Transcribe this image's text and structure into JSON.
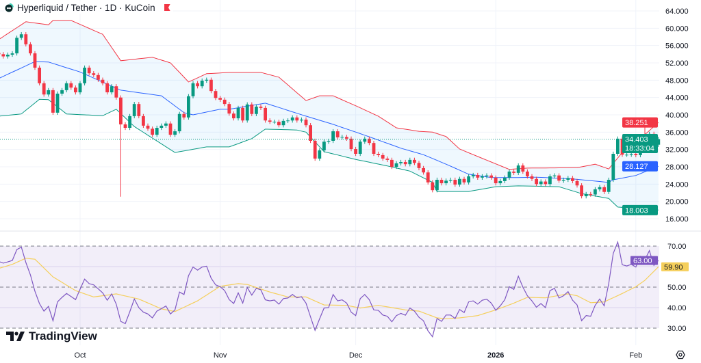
{
  "header": {
    "symbol_title": "Hyperliquid / Tether · 1D · KuCoin",
    "logo_icon": "hyperliquid-logo-icon",
    "flag_icon": "red-flag-icon"
  },
  "branding": {
    "name": "TradingView"
  },
  "settings_icon": "gear-icon",
  "colors": {
    "up": "#089981",
    "down": "#f23645",
    "bb_upper": "#f23645",
    "bb_basis": "#2962ff",
    "bb_lower": "#089981",
    "bb_fill": "#2196f3",
    "rsi": "#7e57c2",
    "rsi_ma": "#f5cf5b",
    "grid": "#f0f3fa"
  },
  "chart_data": [
    {
      "type": "candlestick",
      "title": "Hyperliquid / Tether · 1D · KuCoin",
      "interval": "1D",
      "first_candle_date": "2025-09-13",
      "ylim": [
        14.5,
        66.5
      ],
      "y_ticks": [
        "64.000",
        "60.000",
        "56.000",
        "52.000",
        "48.000",
        "44.000",
        "40.000",
        "36.000",
        "32.000",
        "28.000",
        "24.000",
        "20.000",
        "16.000"
      ],
      "x_ticks": [
        {
          "label": "Oct",
          "date": "2025-10-01",
          "bold": false
        },
        {
          "label": "Nov",
          "date": "2025-11-01",
          "bold": false
        },
        {
          "label": "Dec",
          "date": "2025-12-01",
          "bold": false
        },
        {
          "label": "2026",
          "date": "2026-01-01",
          "bold": true
        },
        {
          "label": "Feb",
          "date": "2026-02-01",
          "bold": false
        }
      ],
      "grid": true,
      "close": [
        54.0,
        53.5,
        53.9,
        54.2,
        57.8,
        58.6,
        56.3,
        54.2,
        50.9,
        47.3,
        44.7,
        45.7,
        40.5,
        44.9,
        45.7,
        47.3,
        46.3,
        45.2,
        47.3,
        50.9,
        49.6,
        49.2,
        48.1,
        47.3,
        45.2,
        46.6,
        44.0,
        37.8,
        37.0,
        39.7,
        42.5,
        39.7,
        37.5,
        36.8,
        35.4,
        37.0,
        37.5,
        38.0,
        35.4,
        36.2,
        40.2,
        39.4,
        44.3,
        47.3,
        46.6,
        47.9,
        48.1,
        45.5,
        43.9,
        43.5,
        42.5,
        40.3,
        39.2,
        41.6,
        38.7,
        42.4,
        40.2,
        41.9,
        41.6,
        38.7,
        38.4,
        38.4,
        37.6,
        38.6,
        38.7,
        39.4,
        38.7,
        38.9,
        37.6,
        34.0,
        29.9,
        31.8,
        33.8,
        34.0,
        36.2,
        34.8,
        34.9,
        34.5,
        32.1,
        31.0,
        33.8,
        34.5,
        33.5,
        31.0,
        30.7,
        29.9,
        29.6,
        28.0,
        28.8,
        29.1,
        28.6,
        29.6,
        28.9,
        27.7,
        26.7,
        24.4,
        22.6,
        25.0,
        24.2,
        24.8,
        25.0,
        23.9,
        25.2,
        24.4,
        25.8,
        26.1,
        25.5,
        25.8,
        26.0,
        25.5,
        24.2,
        24.7,
        25.5,
        26.9,
        26.6,
        28.3,
        26.9,
        25.8,
        25.2,
        24.0,
        24.6,
        24.0,
        25.8,
        26.0,
        24.8,
        25.0,
        25.4,
        24.7,
        23.7,
        21.2,
        21.7,
        21.6,
        22.8,
        23.3,
        22.2,
        25.0,
        31.0,
        34.5,
        30.8,
        30.8,
        31.0,
        30.7,
        33.8,
        32.7,
        35.6,
        33.1,
        34.403
      ],
      "wick_extremes": [
        {
          "date": "2025-10-10",
          "low": 21.1
        },
        {
          "date": "2026-02-03",
          "high": 38.7
        }
      ],
      "bollinger": {
        "upper": [
          [
            "2025-09-13",
            57.4
          ],
          [
            "2025-09-19",
            61.5
          ],
          [
            "2025-09-24",
            60.8
          ],
          [
            "2025-09-25",
            61.8
          ],
          [
            "2025-09-29",
            61.8
          ],
          [
            "2025-10-06",
            58.6
          ],
          [
            "2025-10-10",
            52.5
          ],
          [
            "2025-10-17",
            53.3
          ],
          [
            "2025-10-21",
            52.0
          ],
          [
            "2025-10-25",
            47.6
          ],
          [
            "2025-10-29",
            49.5
          ],
          [
            "2025-11-03",
            49.8
          ],
          [
            "2025-11-10",
            49.8
          ],
          [
            "2025-11-14",
            48.7
          ],
          [
            "2025-11-20",
            43.3
          ],
          [
            "2025-11-23",
            44.4
          ],
          [
            "2025-11-26",
            44.4
          ],
          [
            "2025-12-01",
            42.1
          ],
          [
            "2025-12-06",
            39.7
          ],
          [
            "2025-12-10",
            37.0
          ],
          [
            "2025-12-15",
            36.2
          ],
          [
            "2025-12-18",
            36.0
          ],
          [
            "2025-12-21",
            35.0
          ],
          [
            "2025-12-24",
            32.1
          ],
          [
            "2025-12-31",
            29.1
          ],
          [
            "2026-01-04",
            27.4
          ],
          [
            "2026-01-08",
            27.7
          ],
          [
            "2026-01-19",
            27.8
          ],
          [
            "2026-01-23",
            28.6
          ],
          [
            "2026-01-26",
            27.5
          ],
          [
            "2026-01-29",
            31.3
          ],
          [
            "2026-02-02",
            34.5
          ],
          [
            "2026-02-06",
            38.251
          ]
        ],
        "basis": [
          [
            "2025-09-13",
            48.4
          ],
          [
            "2025-09-21",
            52.3
          ],
          [
            "2025-09-24",
            52.2
          ],
          [
            "2025-10-01",
            49.9
          ],
          [
            "2025-10-10",
            45.7
          ],
          [
            "2025-10-19",
            44.4
          ],
          [
            "2025-10-24",
            40.5
          ],
          [
            "2025-10-26",
            40.0
          ],
          [
            "2025-11-01",
            41.3
          ],
          [
            "2025-11-03",
            41.3
          ],
          [
            "2025-11-11",
            42.7
          ],
          [
            "2025-11-20",
            39.7
          ],
          [
            "2025-11-26",
            37.8
          ],
          [
            "2025-12-03",
            35.3
          ],
          [
            "2025-12-11",
            32.3
          ],
          [
            "2025-12-16",
            30.8
          ],
          [
            "2025-12-21",
            28.6
          ],
          [
            "2025-12-26",
            26.3
          ],
          [
            "2025-12-31",
            25.5
          ],
          [
            "2026-01-05",
            25.5
          ],
          [
            "2026-01-10",
            25.6
          ],
          [
            "2026-01-18",
            25.2
          ],
          [
            "2026-01-26",
            24.4
          ],
          [
            "2026-01-27",
            25.0
          ],
          [
            "2026-02-01",
            26.0
          ],
          [
            "2026-02-06",
            28.127
          ]
        ],
        "lower": [
          [
            "2025-09-13",
            39.7
          ],
          [
            "2025-09-18",
            40.2
          ],
          [
            "2025-09-22",
            43.6
          ],
          [
            "2025-09-24",
            43.5
          ],
          [
            "2025-09-28",
            40.2
          ],
          [
            "2025-10-06",
            39.8
          ],
          [
            "2025-10-09",
            41.3
          ],
          [
            "2025-10-13",
            37.3
          ],
          [
            "2025-10-22",
            31.3
          ],
          [
            "2025-10-29",
            32.6
          ],
          [
            "2025-11-03",
            32.6
          ],
          [
            "2025-11-08",
            34.5
          ],
          [
            "2025-11-11",
            36.7
          ],
          [
            "2025-11-18",
            36.5
          ],
          [
            "2025-11-20",
            36.0
          ],
          [
            "2025-11-24",
            31.5
          ],
          [
            "2025-12-01",
            29.7
          ],
          [
            "2025-12-08",
            28.2
          ],
          [
            "2025-12-13",
            27.0
          ],
          [
            "2025-12-18",
            24.4
          ],
          [
            "2025-12-19",
            22.3
          ],
          [
            "2025-12-26",
            22.3
          ],
          [
            "2026-01-01",
            23.4
          ],
          [
            "2026-01-06",
            23.6
          ],
          [
            "2026-01-15",
            23.4
          ],
          [
            "2026-01-20",
            21.8
          ],
          [
            "2026-01-26",
            20.7
          ],
          [
            "2026-01-28",
            18.7
          ],
          [
            "2026-02-06",
            18.003
          ]
        ]
      },
      "price_tags": [
        {
          "label": "38.251",
          "value": 38.251,
          "color": "#f23645"
        },
        {
          "label": "34.403",
          "sublabel": "18:33:04",
          "value": 34.403,
          "color": "#089981"
        },
        {
          "label": "28.127",
          "value": 28.127,
          "color": "#2962ff"
        },
        {
          "label": "18.003",
          "value": 18.003,
          "color": "#089981"
        }
      ],
      "last_price": 34.403
    },
    {
      "type": "line",
      "ylim": [
        23,
        77
      ],
      "y_ticks": [
        "70.00",
        "50.00",
        "40.00",
        "30.00"
      ],
      "bands": [
        30,
        70
      ],
      "rsi": [
        62.5,
        61.7,
        62.3,
        63,
        68.3,
        69.5,
        62,
        56,
        48,
        42,
        38.3,
        40.6,
        33.6,
        42.8,
        45,
        46.9,
        45.4,
        43.9,
        49,
        53.9,
        51.7,
        51.1,
        49.2,
        47.2,
        43.6,
        46.7,
        41.7,
        33.3,
        32.2,
        38,
        44.2,
        40,
        37.8,
        36.9,
        35,
        38.3,
        39.5,
        40.8,
        36.9,
        38.9,
        47.6,
        46.4,
        55.6,
        59.8,
        58.3,
        59.8,
        60.2,
        54.4,
        51.1,
        50.2,
        48.3,
        43.9,
        42,
        47.2,
        42.2,
        49.8,
        46.1,
        49.4,
        48.7,
        43.8,
        43.3,
        43.7,
        41.7,
        44.4,
        44.7,
        46.4,
        44.8,
        45.3,
        42.2,
        35.5,
        28.9,
        34.5,
        39.8,
        40,
        46.4,
        43.3,
        43.8,
        42.2,
        37.8,
        36.1,
        44.4,
        46.4,
        43.9,
        38.9,
        38.7,
        36.4,
        35.8,
        33.1,
        36.1,
        37.2,
        36.3,
        39.8,
        38.3,
        35.3,
        33.6,
        28.7,
        25.8,
        34.7,
        33.3,
        36.4,
        36.4,
        34.7,
        39.1,
        37.6,
        42.8,
        43.3,
        41.7,
        43.6,
        44.1,
        42.2,
        38.7,
        40.9,
        43.9,
        50.2,
        48.9,
        55.3,
        50,
        45.8,
        43.3,
        40.2,
        42,
        40,
        48.3,
        49.4,
        44.7,
        45.8,
        47.8,
        43.6,
        41.3,
        33.6,
        36.1,
        35.8,
        41.1,
        44.2,
        40.9,
        51.7,
        66.4,
        72,
        60.9,
        60.3,
        61.1,
        59.8,
        65,
        63.3,
        67.8,
        60.6,
        63.0
      ],
      "rsi_ma": [
        [
          "2025-09-13",
          59.1
        ],
        [
          "2025-09-16",
          61.1
        ],
        [
          "2025-09-19",
          64.1
        ],
        [
          "2025-09-21",
          63.6
        ],
        [
          "2025-09-25",
          55
        ],
        [
          "2025-09-30",
          48.3
        ],
        [
          "2025-10-04",
          45.2
        ],
        [
          "2025-10-09",
          46.7
        ],
        [
          "2025-10-14",
          44.2
        ],
        [
          "2025-10-19",
          39.4
        ],
        [
          "2025-10-22",
          38.1
        ],
        [
          "2025-10-27",
          43.3
        ],
        [
          "2025-11-01",
          50.4
        ],
        [
          "2025-11-05",
          51.7
        ],
        [
          "2025-11-07",
          51.3
        ],
        [
          "2025-11-12",
          47.6
        ],
        [
          "2025-11-16",
          45.2
        ],
        [
          "2025-11-20",
          45.2
        ],
        [
          "2025-11-24",
          41.3
        ],
        [
          "2025-11-29",
          41.1
        ],
        [
          "2025-12-02",
          39.8
        ],
        [
          "2025-12-06",
          41.1
        ],
        [
          "2025-12-12",
          38.9
        ],
        [
          "2025-12-15",
          38.3
        ],
        [
          "2025-12-19",
          35
        ],
        [
          "2025-12-21",
          34.6
        ],
        [
          "2025-12-24",
          35
        ],
        [
          "2025-12-28",
          36.1
        ],
        [
          "2026-01-01",
          38.9
        ],
        [
          "2026-01-05",
          42.2
        ],
        [
          "2026-01-08",
          45
        ],
        [
          "2026-01-12",
          44.8
        ],
        [
          "2026-01-17",
          46.7
        ],
        [
          "2026-01-19",
          45.8
        ],
        [
          "2026-01-22",
          42.4
        ],
        [
          "2026-01-25",
          42.8
        ],
        [
          "2026-01-29",
          46.9
        ],
        [
          "2026-02-01",
          50.2
        ],
        [
          "2026-02-03",
          53.3
        ],
        [
          "2026-02-06",
          59.9
        ]
      ],
      "value_tags": [
        {
          "label": "63.00",
          "value": 63.0,
          "color": "#7e57c2"
        },
        {
          "label": "59.90",
          "value": 59.9,
          "color": "#f5cf5b"
        }
      ]
    }
  ]
}
